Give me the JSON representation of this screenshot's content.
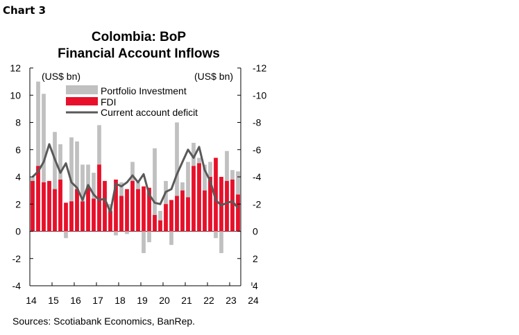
{
  "header": {
    "chart_label": "Chart 3",
    "title_line1": "Colombia: BoP",
    "title_line2": "Financial Account Inflows"
  },
  "footer": {
    "source": "Sources:  Scotiabank Economics, BanRep."
  },
  "colors": {
    "portfolio": "#c0c0c0",
    "fdi": "#e8102a",
    "cad": "#595959",
    "axis": "#000000"
  },
  "chart_data": {
    "type": "bar",
    "left_unit_label": "(US$ bn)",
    "right_unit_label": "(US$ bn)",
    "left_ylim": [
      -4,
      12
    ],
    "left_ticks": [
      12,
      10,
      8,
      6,
      4,
      2,
      0,
      -2,
      -4
    ],
    "right_tick_labels": [
      "-12",
      "-10",
      "-8",
      "-6",
      "-4",
      "-2",
      "0",
      "2",
      "4"
    ],
    "x_tick_labels": [
      "14",
      "15",
      "16",
      "17",
      "18",
      "19",
      "20",
      "21",
      "22",
      "23",
      "24"
    ],
    "x_start_year": 2014,
    "legend": [
      "Portfolio Investment",
      "FDI",
      "Current account deficit"
    ],
    "legend_position": "top",
    "series": [
      {
        "name": "Portfolio Investment",
        "values": [
          4.0,
          11.0,
          10.1,
          3.6,
          7.3,
          6.4,
          -0.5,
          6.9,
          6.6,
          4.9,
          4.9,
          4.3,
          7.8,
          3.0,
          2.0,
          -0.3,
          3.6,
          -0.2,
          5.1,
          3.6,
          -1.6,
          -0.8,
          6.1,
          1.5,
          3.7,
          -1.0,
          8.0,
          3.6,
          5.1,
          6.5,
          5.4,
          4.9,
          5.1,
          -0.5,
          -1.6,
          5.9,
          4.5,
          4.4
        ]
      },
      {
        "name": "FDI",
        "values": [
          3.7,
          4.8,
          3.6,
          3.7,
          3.1,
          3.8,
          2.1,
          2.2,
          3.1,
          2.2,
          3.2,
          2.4,
          4.9,
          3.7,
          1.5,
          3.8,
          2.6,
          3.1,
          3.7,
          3.1,
          3.3,
          3.2,
          1.2,
          0.8,
          2.0,
          2.3,
          2.6,
          3.0,
          2.5,
          4.8,
          5.0,
          3.0,
          4.0,
          5.4,
          4.0,
          3.7,
          3.8,
          2.7
        ]
      },
      {
        "name": "Current account deficit",
        "values": [
          -4.0,
          -4.4,
          -5.1,
          -6.4,
          -5.3,
          -4.3,
          -5.0,
          -3.6,
          -3.2,
          -2.3,
          -3.4,
          -2.7,
          -2.3,
          -2.4,
          -1.4,
          -3.5,
          -3.3,
          -3.6,
          -4.1,
          -3.6,
          -4.2,
          -2.7,
          -2.1,
          -2.0,
          -2.9,
          -3.1,
          -4.2,
          -5.1,
          -6.0,
          -5.4,
          -6.2,
          -4.5,
          -3.7,
          -2.3,
          -1.9,
          -2.1,
          -2.2,
          -1.7
        ]
      }
    ]
  }
}
